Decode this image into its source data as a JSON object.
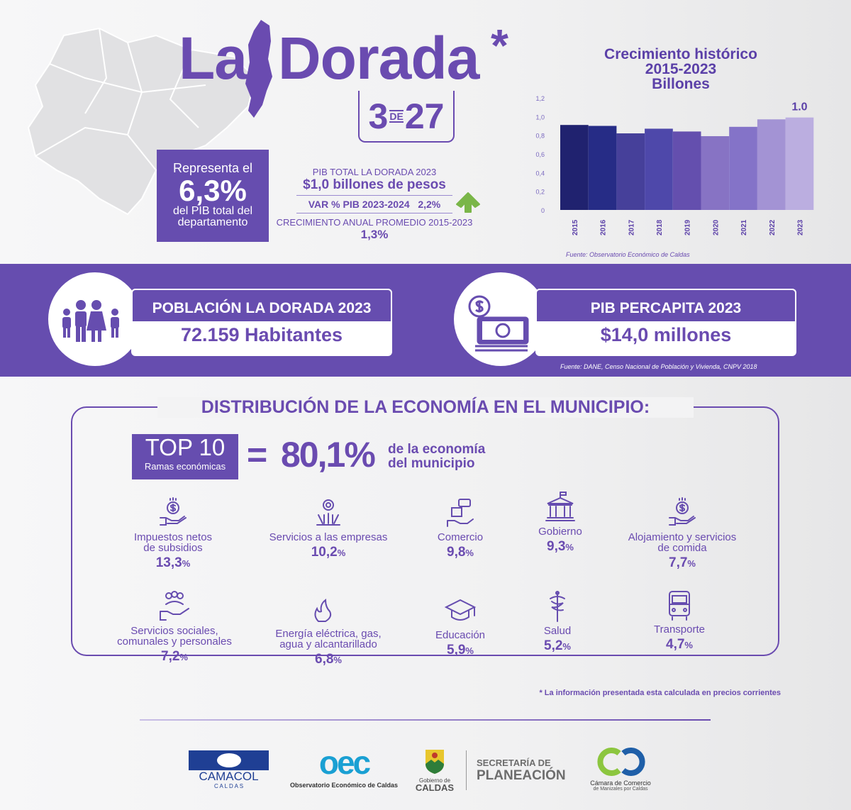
{
  "header": {
    "title_la": "La",
    "title_dorada": "Dorada",
    "asterisk": "*",
    "rank": "3",
    "rank_de": "DE",
    "rank_total": "27"
  },
  "share": {
    "line1": "Representa el",
    "value": "6,3%",
    "line2": "del PIB total del",
    "line3": "departamento"
  },
  "pib": {
    "label": "PIB TOTAL LA DORADA 2023",
    "value": "$1,0 billones de pesos",
    "var_label": "VAR % PIB 2023-2024",
    "var_value": "2,2%",
    "growth_label": "CRECIMIENTO ANUAL PROMEDIO 2015-2023",
    "growth_value": "1,3%",
    "trend_icon": "arrow-up-icon",
    "trend_color": "#7ab648"
  },
  "chart_data": {
    "type": "bar",
    "title": "Crecimiento histórico 2015-2023 Billones",
    "title_lines": [
      "Crecimiento histórico",
      "2015-2023",
      "Billones"
    ],
    "categories": [
      "2015",
      "2016",
      "2017",
      "2018",
      "2019",
      "2020",
      "2021",
      "2022",
      "2023"
    ],
    "values": [
      0.91,
      0.9,
      0.82,
      0.87,
      0.84,
      0.79,
      0.89,
      0.97,
      0.99
    ],
    "colors": [
      "#20226f",
      "#262c86",
      "#46409a",
      "#4e48aa",
      "#644fae",
      "#8773c4",
      "#8473c8",
      "#a393d4",
      "#bbaee0"
    ],
    "ylim": [
      0,
      1.2
    ],
    "yticks": [
      "0",
      "0,2",
      "0,4",
      "0,6",
      "0,8",
      "1,0",
      "1,2"
    ],
    "data_label": "1.0",
    "source": "Fuente: Observatorio Económico de Caldas"
  },
  "population": {
    "title": "POBLACIÓN LA DORADA 2023",
    "value": "72.159 Habitantes"
  },
  "per_capita": {
    "title": "PIB PERCAPITA 2023",
    "value": "$14,0 millones"
  },
  "band_source": "Fuente: DANE, Censo Nacional de Población y Vivienda, CNPV 2018",
  "distribution": {
    "title": "DISTRIBUCIÓN DE LA ECONOMÍA EN EL MUNICIPIO:",
    "top_label": "TOP 10",
    "top_sub": "Ramas económicas",
    "equals": "=",
    "share": "80,1%",
    "share_text1": "de la economía",
    "share_text2": "del municipio",
    "items": [
      {
        "l1": "Impuestos netos",
        "l2": "de subsidios",
        "value": "13,3",
        "unit": "%",
        "icon": "hand-coin-icon"
      },
      {
        "l1": "Servicios a las empresas",
        "l2": "",
        "value": "10,2",
        "unit": "%",
        "icon": "gear-people-icon"
      },
      {
        "l1": "Comercio",
        "l2": "",
        "value": "9,8",
        "unit": "%",
        "icon": "price-tag-hand-icon"
      },
      {
        "l1": "Gobierno",
        "l2": "",
        "value": "9,3",
        "unit": "%",
        "icon": "government-building-icon"
      },
      {
        "l1": "Alojamiento y servicios",
        "l2": "de comida",
        "value": "7,7",
        "unit": "%",
        "icon": "hand-coin-icon"
      },
      {
        "l1": "Servicios sociales,",
        "l2": "comunales y personales",
        "value": "7,2",
        "unit": "%",
        "icon": "people-hand-icon"
      },
      {
        "l1": "Energía eléctrica, gas,",
        "l2": "agua y alcantarillado",
        "value": "6,8",
        "unit": "%",
        "icon": "utilities-icon"
      },
      {
        "l1": "Educación",
        "l2": "",
        "value": "5,9",
        "unit": "%",
        "icon": "graduation-cap-icon"
      },
      {
        "l1": "Salud",
        "l2": "",
        "value": "5,2",
        "unit": "%",
        "icon": "caduceus-icon"
      },
      {
        "l1": "Transporte",
        "l2": "",
        "value": "4,7",
        "unit": "%",
        "icon": "bus-icon"
      }
    ]
  },
  "note": "* La información presentada esta calculada en precios corrientes",
  "logos": {
    "camacol": "CAMACOL",
    "camacol_sub": "C A L D A S",
    "oec": "oec",
    "oec_sub": "Observatorio Económico de Caldas",
    "gob1": "Gobierno de",
    "gob2": "CALDAS",
    "sec1": "SECRETARÍA DE",
    "sec2": "PLANEACIÓN",
    "cc1": "Cámara de Comercio",
    "cc2": "de Manizales por Caldas"
  }
}
